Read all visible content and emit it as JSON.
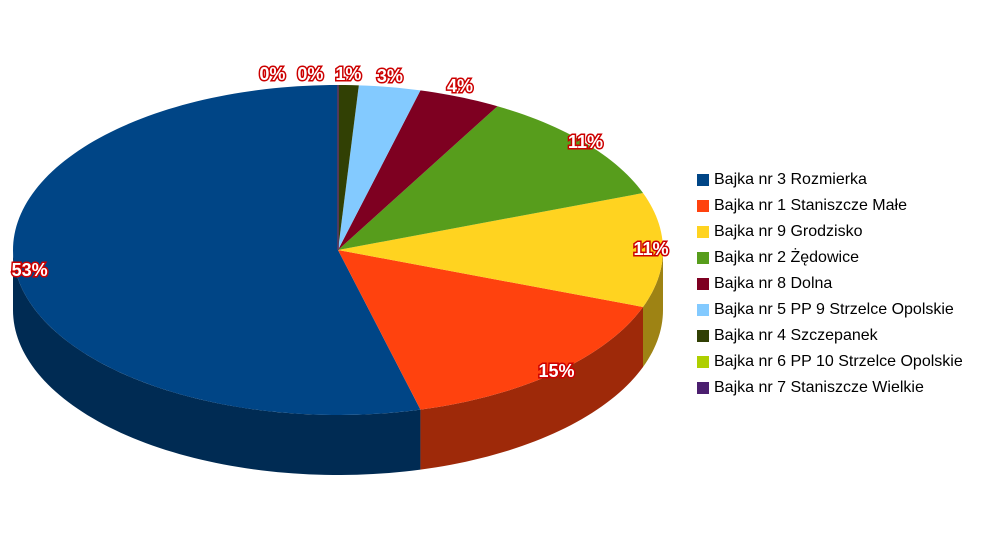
{
  "chart_data": {
    "type": "pie",
    "categories": [
      "Bajka nr 3 Rozmierka",
      "Bajka nr 1 Staniszcze Małe",
      "Bajka nr 9 Grodzisko",
      "Bajka nr 2 Żędowice",
      "Bajka nr 8 Dolna",
      "Bajka nr 5 PP 9 Strzelce Opolskie",
      "Bajka nr 4 Szczepanek",
      "Bajka nr 6 PP 10 Strzelce Opolskie",
      "Bajka nr 7 Staniszcze Wielkie"
    ],
    "values": [
      53,
      15,
      11,
      11,
      4,
      3,
      1,
      0,
      0
    ],
    "value_labels": [
      "53%",
      "15%",
      "11%",
      "11%",
      "4%",
      "3%",
      "1%",
      "0%",
      "0%"
    ],
    "colors": [
      "#004586",
      "#ff420e",
      "#ffd320",
      "#579d1c",
      "#7e0021",
      "#83caff",
      "#314004",
      "#aecf00",
      "#4b1f6f"
    ],
    "legend": "right"
  }
}
